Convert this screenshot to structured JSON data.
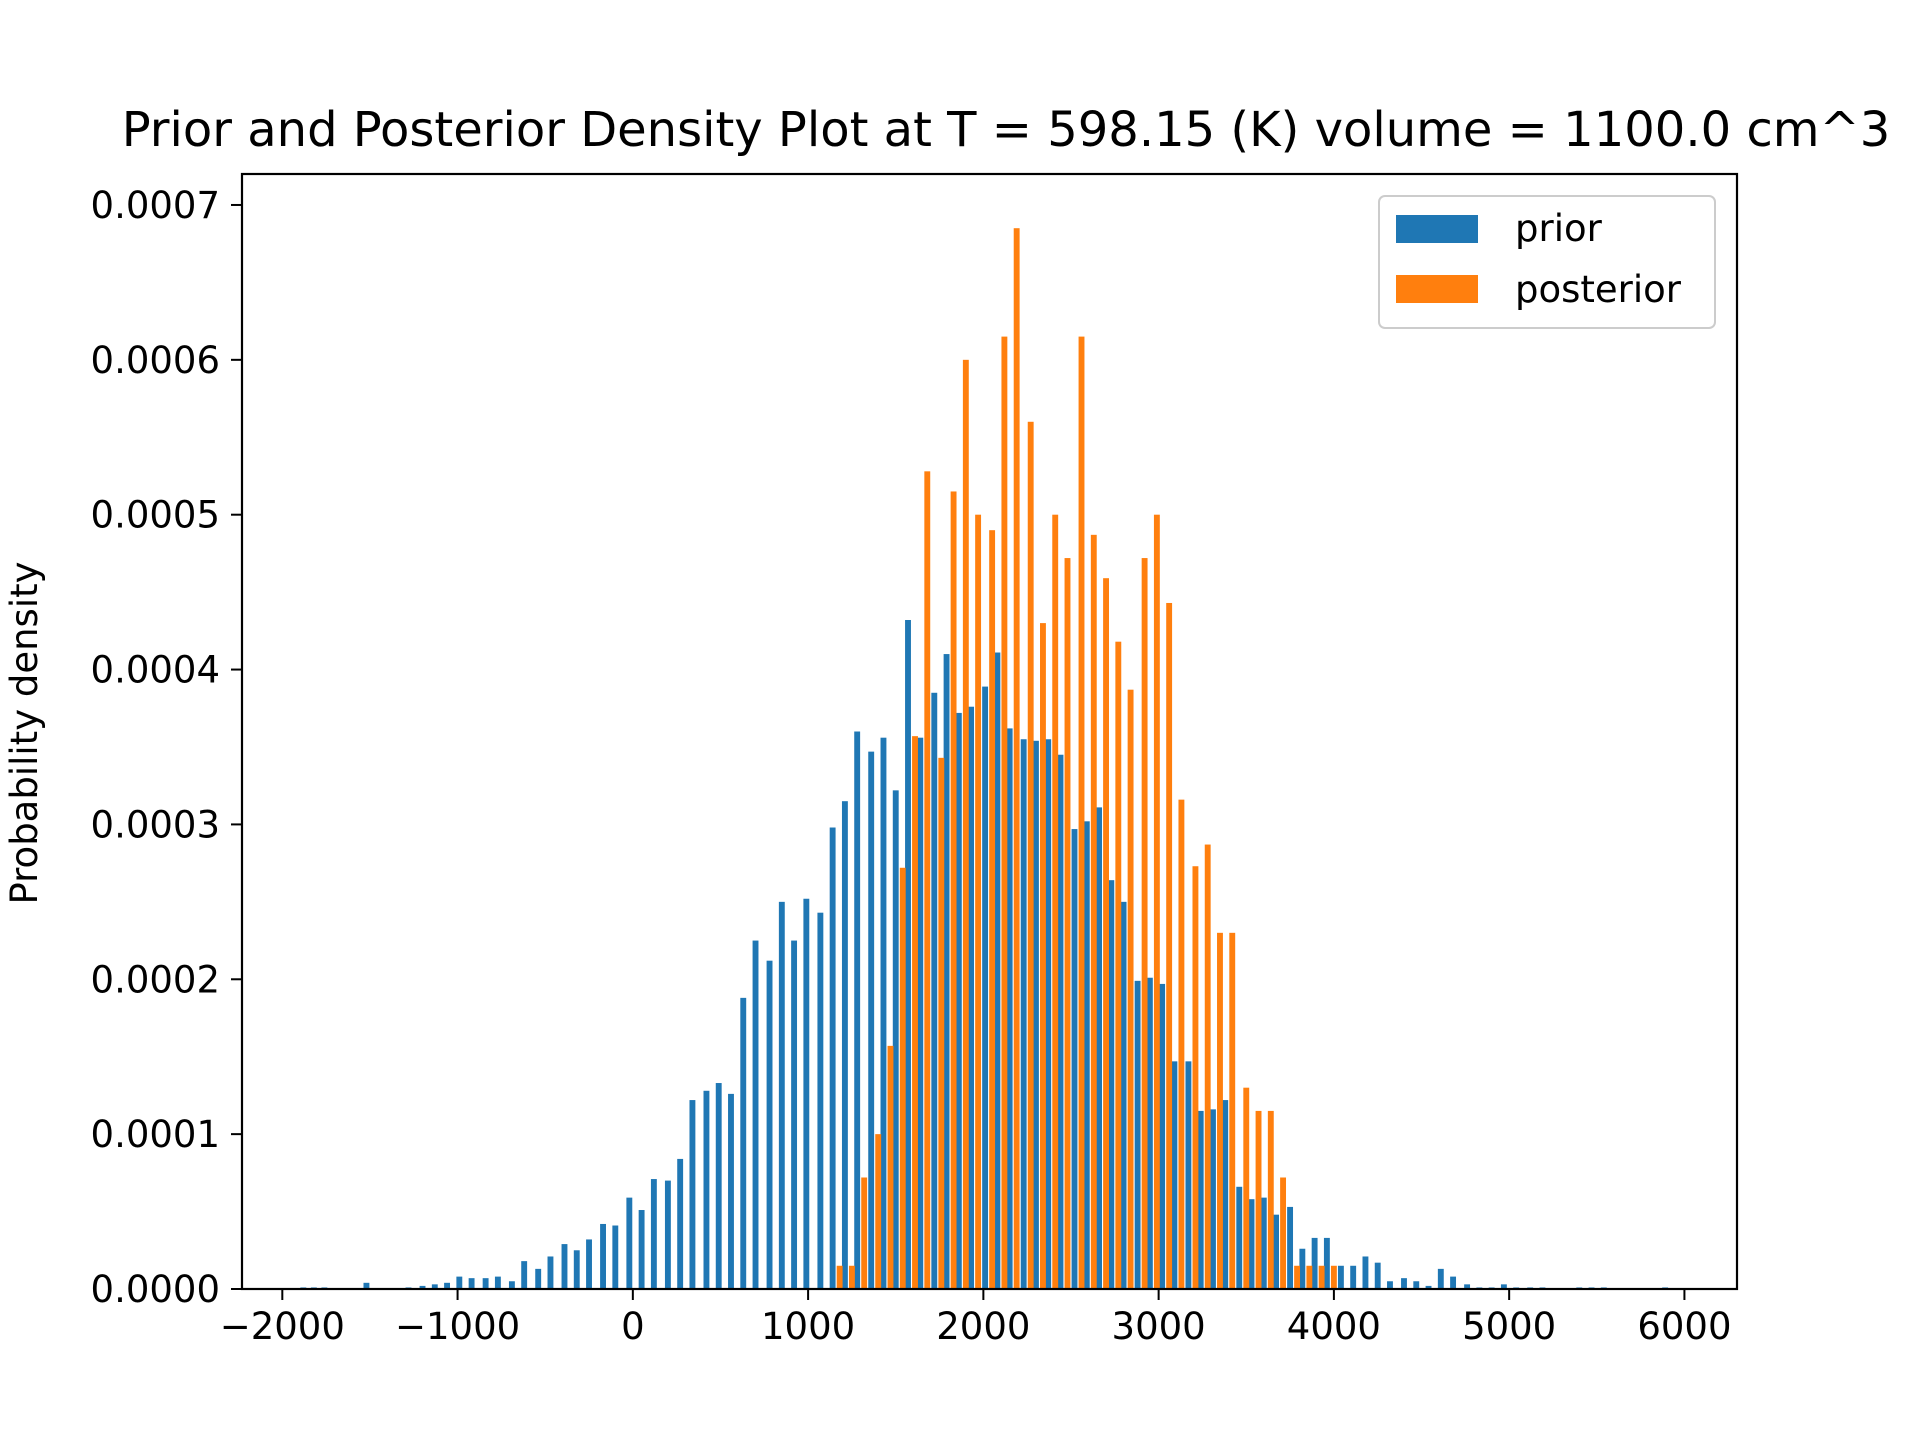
{
  "chart_data": {
    "type": "bar",
    "title": "Prior and Posterior Density Plot at T = 598.15 (K) volume = 1100.0 cm^3",
    "xlabel": "",
    "ylabel": "Probability density",
    "xlim": [
      -2230,
      6300
    ],
    "ylim": [
      0,
      0.00072
    ],
    "x_ticks": [
      -2000,
      -1000,
      0,
      1000,
      2000,
      3000,
      4000,
      5000,
      6000
    ],
    "x_tick_labels": [
      "−2000",
      "−1000",
      "0",
      "1000",
      "2000",
      "3000",
      "4000",
      "5000",
      "6000"
    ],
    "y_ticks": [
      0,
      0.0001,
      0.0002,
      0.0003,
      0.0004,
      0.0005,
      0.0006,
      0.0007
    ],
    "y_tick_labels": [
      "0.0000",
      "0.0001",
      "0.0002",
      "0.0003",
      "0.0004",
      "0.0005",
      "0.0006",
      "0.0007"
    ],
    "grid": false,
    "legend_position": "top-right",
    "bin_width": 80,
    "series": [
      {
        "name": "prior",
        "color": "#1f77b4",
        "x": [
          -1860,
          -1800,
          -1740,
          -1500,
          -1260,
          -1180,
          -1110,
          -1040,
          -970,
          -900,
          -820,
          -750,
          -670,
          -600,
          -520,
          -450,
          -370,
          -300,
          -230,
          -150,
          -80,
          0,
          70,
          140,
          220,
          290,
          360,
          440,
          510,
          580,
          650,
          720,
          800,
          870,
          940,
          1010,
          1090,
          1160,
          1230,
          1300,
          1380,
          1450,
          1520,
          1590,
          1660,
          1740,
          1810,
          1880,
          1950,
          2030,
          2100,
          2170,
          2250,
          2320,
          2390,
          2460,
          2540,
          2610,
          2680,
          2750,
          2820,
          2900,
          2970,
          3040,
          3110,
          3190,
          3260,
          3330,
          3400,
          3480,
          3550,
          3620,
          3690,
          3770,
          3840,
          3910,
          3980,
          4060,
          4130,
          4200,
          4270,
          4340,
          4420,
          4490,
          4560,
          4630,
          4700,
          4780,
          4850,
          4920,
          4990,
          5060,
          5140,
          5210,
          5420,
          5490,
          5560,
          5910
        ],
        "values": [
          1e-06,
          1e-06,
          1e-06,
          4e-06,
          1e-06,
          2e-06,
          3e-06,
          4e-06,
          8e-06,
          7e-06,
          7e-06,
          8e-06,
          5e-06,
          1.8e-05,
          1.3e-05,
          2.1e-05,
          2.9e-05,
          2.5e-05,
          3.2e-05,
          4.2e-05,
          4.1e-05,
          5.9e-05,
          5.1e-05,
          7.1e-05,
          7e-05,
          8.4e-05,
          0.000122,
          0.000128,
          0.000133,
          0.000126,
          0.000188,
          0.000225,
          0.000212,
          0.00025,
          0.000225,
          0.000252,
          0.000243,
          0.000298,
          0.000315,
          0.00036,
          0.000347,
          0.000356,
          0.000322,
          0.000432,
          0.000356,
          0.000385,
          0.00041,
          0.000372,
          0.000376,
          0.000389,
          0.000411,
          0.000362,
          0.000355,
          0.000354,
          0.000355,
          0.000345,
          0.000297,
          0.000302,
          0.000311,
          0.000264,
          0.00025,
          0.000199,
          0.000201,
          0.000197,
          0.000147,
          0.000147,
          0.000115,
          0.000116,
          0.000122,
          6.6e-05,
          5.8e-05,
          5.9e-05,
          4.8e-05,
          5.3e-05,
          2.6e-05,
          3.3e-05,
          3.3e-05,
          1.5e-05,
          1.5e-05,
          2.1e-05,
          1.7e-05,
          5e-06,
          7e-06,
          5e-06,
          2e-06,
          1.3e-05,
          8e-06,
          3e-06,
          1e-06,
          1e-06,
          3e-06,
          1e-06,
          1e-06,
          1e-06,
          1e-06,
          1e-06,
          1e-06,
          1e-06
        ]
      },
      {
        "name": "posterior",
        "color": "#ff7f0e",
        "x": [
          1160,
          1230,
          1300,
          1380,
          1450,
          1520,
          1590,
          1660,
          1740,
          1810,
          1880,
          1950,
          2030,
          2100,
          2170,
          2250,
          2320,
          2390,
          2460,
          2540,
          2610,
          2680,
          2750,
          2820,
          2900,
          2970,
          3040,
          3110,
          3190,
          3260,
          3330,
          3400,
          3480,
          3550,
          3620,
          3690,
          3770,
          3840,
          3910,
          3980
        ],
        "values": [
          1.5e-05,
          1.5e-05,
          7.2e-05,
          0.0001,
          0.000157,
          0.000272,
          0.000357,
          0.000528,
          0.000343,
          0.000515,
          0.0006,
          0.0005,
          0.00049,
          0.000615,
          0.000685,
          0.00056,
          0.00043,
          0.0005,
          0.000472,
          0.000615,
          0.000487,
          0.000459,
          0.000418,
          0.000387,
          0.000472,
          0.0005,
          0.000443,
          0.000316,
          0.000273,
          0.000287,
          0.00023,
          0.00023,
          0.00013,
          0.000115,
          0.000115,
          7.2e-05,
          1.5e-05,
          1.5e-05,
          1.5e-05,
          1.5e-05
        ]
      }
    ]
  }
}
